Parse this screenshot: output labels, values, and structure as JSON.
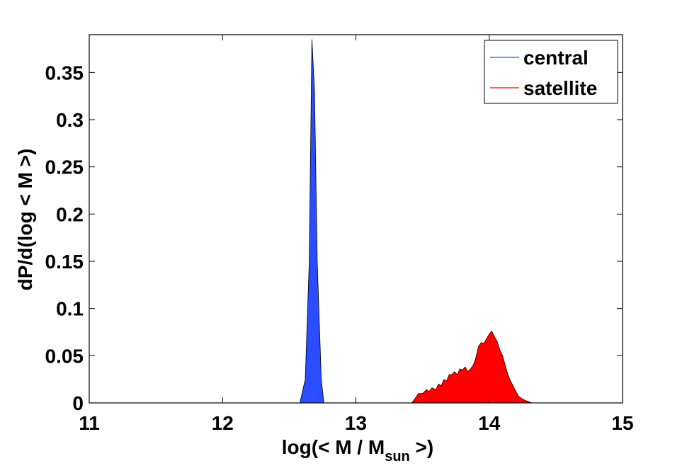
{
  "chart_data": {
    "type": "area",
    "xlabel": {
      "prefix": "log(< M / M",
      "subscript": "sun",
      "suffix": " >)"
    },
    "ylabel": "dP/d(log < M >)",
    "xlim": [
      11,
      15
    ],
    "ylim": [
      0,
      0.39
    ],
    "xticks": [
      {
        "value": 11,
        "label": "11"
      },
      {
        "value": 12,
        "label": "12"
      },
      {
        "value": 13,
        "label": "13"
      },
      {
        "value": 14,
        "label": "14"
      },
      {
        "value": 15,
        "label": "15"
      }
    ],
    "yticks": [
      {
        "value": 0,
        "label": "0"
      },
      {
        "value": 0.05,
        "label": "0.05"
      },
      {
        "value": 0.1,
        "label": "0.1"
      },
      {
        "value": 0.15,
        "label": "0.15"
      },
      {
        "value": 0.2,
        "label": "0.2"
      },
      {
        "value": 0.25,
        "label": "0.25"
      },
      {
        "value": 0.3,
        "label": "0.3"
      },
      {
        "value": 0.35,
        "label": "0.35"
      }
    ],
    "grid": false,
    "legend_position": "top-right",
    "series": [
      {
        "name": "central",
        "color": "#2b4cff",
        "x": [
          12.58,
          12.62,
          12.65,
          12.67,
          12.69,
          12.71,
          12.74,
          12.76
        ],
        "y": [
          0,
          0.025,
          0.15,
          0.385,
          0.33,
          0.15,
          0.025,
          0
        ]
      },
      {
        "name": "satellite",
        "color": "#ff0000",
        "x": [
          13.42,
          13.47,
          13.5,
          13.53,
          13.55,
          13.57,
          13.6,
          13.62,
          13.64,
          13.66,
          13.68,
          13.7,
          13.72,
          13.74,
          13.76,
          13.78,
          13.8,
          13.82,
          13.84,
          13.86,
          13.88,
          13.9,
          13.92,
          13.94,
          13.96,
          13.98,
          14.0,
          14.02,
          14.04,
          14.06,
          14.08,
          14.1,
          14.12,
          14.14,
          14.16,
          14.18,
          14.2,
          14.22,
          14.25,
          14.28,
          14.32
        ],
        "y": [
          0,
          0.01,
          0.01,
          0.014,
          0.012,
          0.016,
          0.014,
          0.02,
          0.018,
          0.025,
          0.023,
          0.03,
          0.03,
          0.033,
          0.03,
          0.036,
          0.035,
          0.038,
          0.033,
          0.036,
          0.04,
          0.048,
          0.06,
          0.064,
          0.063,
          0.068,
          0.073,
          0.076,
          0.07,
          0.065,
          0.056,
          0.05,
          0.04,
          0.03,
          0.023,
          0.018,
          0.012,
          0.007,
          0.004,
          0.002,
          0
        ]
      }
    ]
  }
}
